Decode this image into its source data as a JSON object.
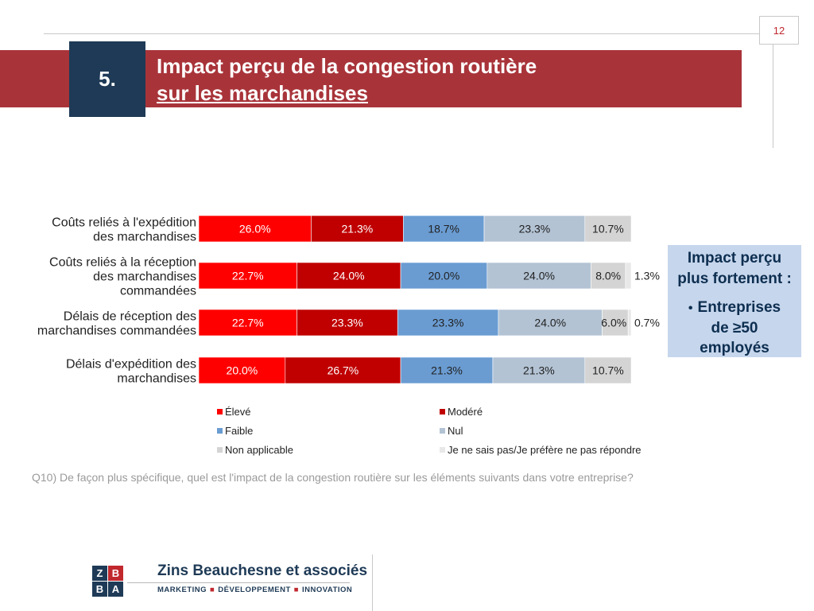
{
  "page": {
    "number": "12",
    "section_number": "5.",
    "title_line1": "Impact perçu de la congestion routière",
    "title_line2": "sur les marchandises"
  },
  "callout": {
    "heading_line1": "Impact perçu",
    "heading_line2": "plus fortement :",
    "bullet_line1": "Entreprises",
    "bullet_line2": "de ≥50",
    "bullet_line3": "employés"
  },
  "question": "Q10) De façon plus spécifique, quel est l'impact de la congestion routière sur les éléments suivants dans votre entreprise?",
  "logo": {
    "tiles": [
      "Z",
      "B",
      "B",
      "A"
    ],
    "name": "Zins Beauchesne et associés",
    "tagline": [
      "MARKETING",
      "DÉVELOPPEMENT",
      "INNOVATION"
    ],
    "colors": {
      "navy": "#1e3a56",
      "red": "#c0282e"
    }
  },
  "chart_data": {
    "type": "bar",
    "orientation": "horizontal",
    "stacked": true,
    "categories": [
      [
        "Coûts reliés à l'expédition",
        "des marchandises"
      ],
      [
        "Coûts reliés à la réception",
        "des marchandises",
        "commandées"
      ],
      [
        "Délais de réception des",
        "marchandises commandées"
      ],
      [
        "Délais d'expédition des",
        "marchandises"
      ]
    ],
    "series": [
      {
        "name": "Élevé",
        "color": "#ff0000",
        "values": [
          26.0,
          22.7,
          22.7,
          20.0
        ],
        "labels": [
          "26.0%",
          "22.7%",
          "22.7%",
          "20.0%"
        ]
      },
      {
        "name": "Modéré",
        "color": "#c00000",
        "values": [
          21.3,
          24.0,
          23.3,
          26.7
        ],
        "labels": [
          "21.3%",
          "24.0%",
          "23.3%",
          "26.7%"
        ]
      },
      {
        "name": "Faible",
        "color": "#6a9cd2",
        "values": [
          18.7,
          20.0,
          23.3,
          21.3
        ],
        "labels": [
          "18.7%",
          "20.0%",
          "23.3%",
          "21.3%"
        ]
      },
      {
        "name": "Nul",
        "color": "#b3c3d4",
        "values": [
          23.3,
          24.0,
          24.0,
          21.3
        ],
        "labels": [
          "23.3%",
          "24.0%",
          "24.0%",
          "21.3%"
        ]
      },
      {
        "name": "Non applicable",
        "color": "#d4d4d4",
        "values": [
          10.7,
          8.0,
          6.0,
          10.7
        ],
        "labels": [
          "10.7%",
          "8.0%",
          "6.0%",
          "10.7%"
        ]
      },
      {
        "name": "Je ne sais pas/Je préfère ne pas répondre",
        "color": "#e8e8e8",
        "values": [
          0,
          1.3,
          0.7,
          0
        ],
        "labels": [
          "",
          "1.3%",
          "0.7%",
          ""
        ]
      }
    ],
    "xlim": [
      0,
      100
    ],
    "grid": false,
    "legend_position": "bottom"
  }
}
